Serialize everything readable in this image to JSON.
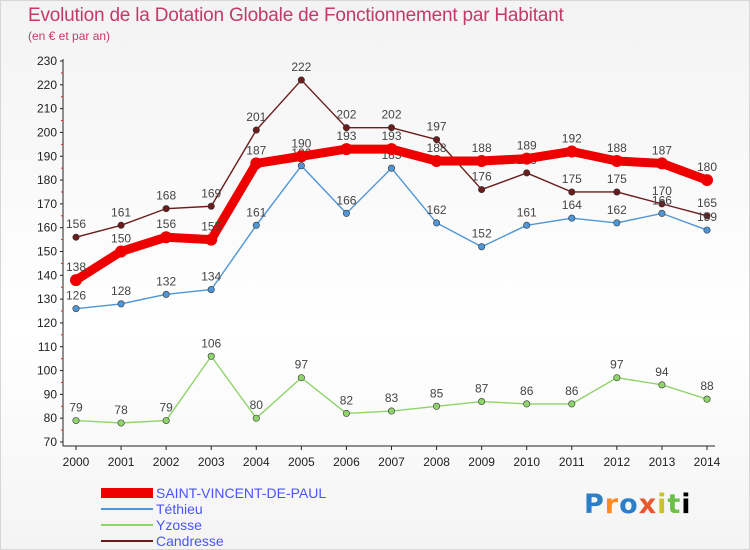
{
  "chart_data": {
    "type": "line",
    "title": "Evolution de la Dotation Globale de Fonctionnement par Habitant",
    "subtitle": "(en € et par an)",
    "xlabel": "",
    "ylabel": "",
    "ylim": [
      70,
      230
    ],
    "yticks": [
      70,
      80,
      90,
      100,
      110,
      120,
      130,
      140,
      150,
      160,
      170,
      180,
      190,
      200,
      210,
      220,
      230
    ],
    "categories": [
      "2000",
      "2001",
      "2002",
      "2003",
      "2004",
      "2005",
      "2006",
      "2007",
      "2008",
      "2009",
      "2010",
      "2011",
      "2012",
      "2013",
      "2014"
    ],
    "grid": false,
    "legend_position": "bottom-left",
    "series": [
      {
        "name": "Candresse",
        "color": "#6b1c1c",
        "values": [
          156,
          161,
          168,
          169,
          201,
          222,
          202,
          202,
          197,
          176,
          183,
          175,
          175,
          170,
          165
        ]
      },
      {
        "name": "Téthieu",
        "color": "#4f96d6",
        "values": [
          126,
          128,
          132,
          134,
          161,
          186,
          166,
          185,
          162,
          152,
          161,
          164,
          162,
          166,
          159
        ]
      },
      {
        "name": "Yzosse",
        "color": "#8fd46a",
        "values": [
          79,
          78,
          79,
          106,
          80,
          97,
          82,
          83,
          85,
          87,
          86,
          86,
          97,
          94,
          88
        ]
      },
      {
        "name": "SAINT-VINCENT-DE-PAUL",
        "color": "#ee0000",
        "values": [
          138,
          150,
          156,
          155,
          187,
          190,
          193,
          193,
          188,
          188,
          189,
          192,
          188,
          187,
          180
        ]
      }
    ],
    "legend_order": [
      "SAINT-VINCENT-DE-PAUL",
      "Téthieu",
      "Yzosse",
      "Candresse"
    ]
  },
  "logo": {
    "letters": [
      "P",
      "r",
      "o",
      "x",
      "i",
      "t",
      "i"
    ]
  }
}
